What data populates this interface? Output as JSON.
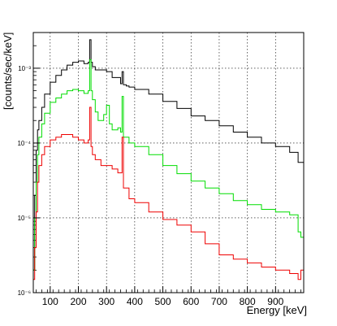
{
  "chart_data": {
    "type": "line",
    "title": "",
    "xlabel": "Energy [keV]",
    "ylabel": "[counts/sec/keV]",
    "xlim": [
      40,
      1000
    ],
    "ylim": [
      1e-06,
      0.003
    ],
    "log_y": true,
    "grid": true,
    "x_ticks": [
      100,
      200,
      300,
      400,
      500,
      600,
      700,
      800,
      900
    ],
    "y_ticks": [
      1e-06,
      1e-05,
      0.0001,
      0.001
    ],
    "y_tick_labels": [
      "10⁻⁶",
      "10⁻⁵",
      "10⁻⁴",
      "10⁻³"
    ],
    "series": [
      {
        "color": "#000000",
        "x": [
          40,
          45,
          50,
          55,
          60,
          70,
          80,
          100,
          120,
          140,
          160,
          180,
          200,
          220,
          235,
          240,
          245,
          250,
          260,
          280,
          300,
          320,
          340,
          350,
          355,
          360,
          370,
          380,
          400,
          450,
          500,
          550,
          600,
          650,
          700,
          750,
          800,
          850,
          900,
          950,
          980,
          1000
        ],
        "y": [
          2e-06,
          2e-05,
          8e-05,
          0.00015,
          0.0002,
          0.0003,
          0.00045,
          0.00065,
          0.0008,
          0.00095,
          0.0011,
          0.0012,
          0.00125,
          0.00115,
          0.0012,
          0.0024,
          0.0012,
          0.00105,
          0.00095,
          0.00095,
          0.0009,
          0.00075,
          0.00075,
          0.00062,
          0.0009,
          0.0006,
          0.00058,
          0.00056,
          0.00052,
          0.00045,
          0.00036,
          0.00029,
          0.00023,
          0.0002,
          0.00017,
          0.00014,
          0.00012,
          0.0001,
          9e-05,
          7.5e-05,
          5.5e-05,
          5e-05
        ]
      },
      {
        "color": "#00dd00",
        "x": [
          40,
          45,
          50,
          55,
          60,
          70,
          80,
          100,
          120,
          140,
          160,
          180,
          200,
          220,
          235,
          240,
          245,
          250,
          260,
          270,
          290,
          300,
          310,
          320,
          340,
          350,
          355,
          360,
          380,
          400,
          450,
          500,
          550,
          600,
          650,
          700,
          750,
          800,
          850,
          900,
          950,
          980,
          990,
          1000
        ],
        "y": [
          2e-06,
          1e-05,
          3e-05,
          7e-05,
          0.00012,
          0.00018,
          0.00025,
          0.00035,
          0.0004,
          0.00045,
          0.0005,
          0.00052,
          0.0005,
          0.00046,
          0.0005,
          0.0013,
          0.0005,
          0.00038,
          0.00026,
          0.0002,
          0.00024,
          0.00032,
          0.00018,
          0.00015,
          0.00016,
          0.00014,
          0.00042,
          0.00012,
          0.0001,
          9e-05,
          7e-05,
          5e-05,
          3.9e-05,
          3.1e-05,
          2.5e-05,
          2.1e-05,
          1.7e-05,
          1.5e-05,
          1.3e-05,
          1.2e-05,
          1.1e-05,
          6.5e-06,
          5.5e-06,
          2e-06
        ]
      },
      {
        "color": "#ee0000",
        "x": [
          40,
          45,
          50,
          55,
          60,
          70,
          80,
          100,
          120,
          140,
          160,
          180,
          200,
          220,
          235,
          240,
          245,
          250,
          260,
          280,
          300,
          320,
          340,
          350,
          355,
          360,
          380,
          400,
          450,
          500,
          550,
          600,
          650,
          700,
          750,
          800,
          850,
          900,
          950,
          980,
          990,
          1000
        ],
        "y": [
          1.5e-06,
          4e-06,
          1.2e-05,
          3e-05,
          5e-05,
          7e-05,
          9e-05,
          0.00011,
          0.00012,
          0.00013,
          0.00013,
          0.00012,
          0.00011,
          0.0001,
          0.00011,
          0.0003,
          9e-05,
          7e-05,
          6e-05,
          5e-05,
          5e-05,
          4.5e-05,
          4e-05,
          4e-05,
          0.00012,
          2.5e-05,
          1.8e-05,
          1.6e-05,
          1.2e-05,
          9.5e-06,
          8e-06,
          6.5e-06,
          4.5e-06,
          3.2e-06,
          2.8e-06,
          2.5e-06,
          2.2e-06,
          2e-06,
          1.8e-06,
          1.5e-06,
          2e-06,
          1.5e-06
        ]
      }
    ]
  }
}
